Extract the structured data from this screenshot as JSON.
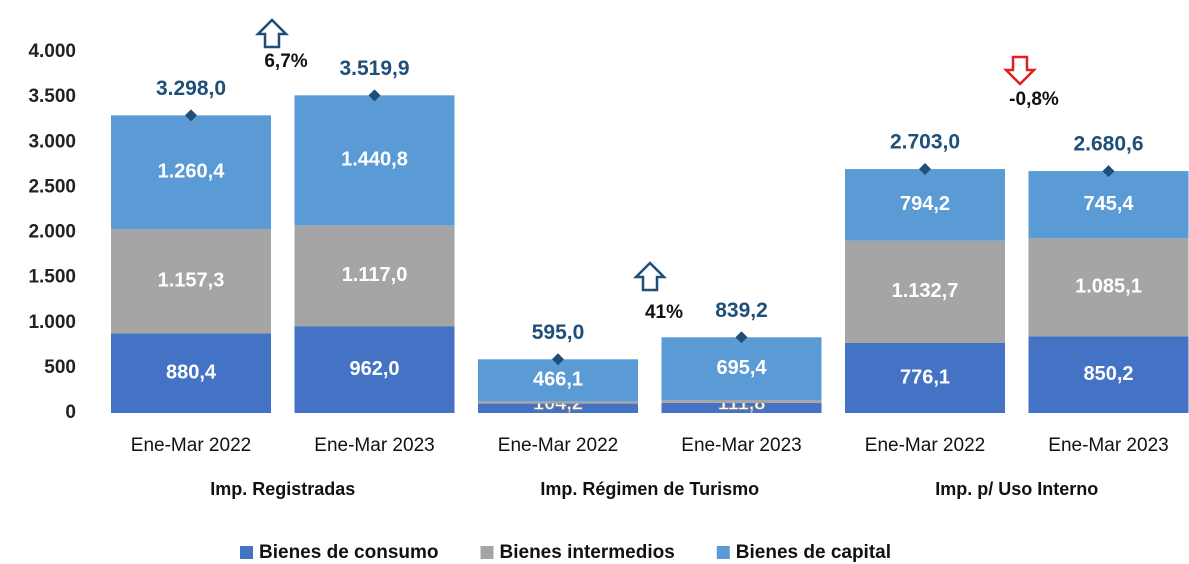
{
  "chart_data": {
    "type": "stacked_bar",
    "categories": [
      "Ene-Mar 2022",
      "Ene-Mar 2023",
      "Ene-Mar 2022",
      "Ene-Mar 2023",
      "Ene-Mar 2022",
      "Ene-Mar 2023"
    ],
    "groups": [
      "Imp. Registradas",
      "Imp. Régimen de Turismo",
      "Imp. p/ Uso Interno"
    ],
    "series": [
      {
        "name": "Bienes de consumo",
        "color": "#4472c4",
        "values": [
          880.4,
          962.0,
          104.2,
          111.8,
          776.1,
          850.2
        ],
        "value_labels": [
          "880,4",
          "962,0",
          "104,2",
          "111,8",
          "776,1",
          "850,2"
        ]
      },
      {
        "name": "Bienes intermedios",
        "color": "#a5a5a5",
        "values": [
          1157.3,
          1117.0,
          24.7,
          32.0,
          1132.7,
          1085.1
        ],
        "value_labels": [
          "1.157,3",
          "1.117,0",
          null,
          null,
          "1.132,7",
          "1.085,1"
        ]
      },
      {
        "name": "Bienes de capital",
        "color": "#5b9bd5",
        "values": [
          1260.4,
          1440.8,
          466.1,
          695.4,
          794.2,
          745.4
        ],
        "value_labels": [
          "1.260,4",
          "1.440,8",
          "466,1",
          "695,4",
          "794,2",
          "745,4"
        ]
      }
    ],
    "totals": {
      "color": "#1f4e79",
      "values": [
        3298.0,
        3519.9,
        595.0,
        839.2,
        2703.0,
        2680.6
      ],
      "value_labels": [
        "3.298,0",
        "3.519,9",
        "595,0",
        "839,2",
        "2.703,0",
        "2.680,6"
      ]
    },
    "annotations": [
      {
        "text": "6,7%",
        "direction": "up"
      },
      {
        "text": "41%",
        "direction": "up"
      },
      {
        "text": "-0,8%",
        "direction": "down"
      }
    ],
    "ylim": [
      0,
      4000
    ],
    "yticks": [
      0,
      500,
      {
        "value": 1000,
        "label": "1.000"
      },
      {
        "value": 1500,
        "label": "1.500"
      },
      {
        "value": 2000,
        "label": "2.000"
      },
      {
        "value": 2500,
        "label": "2.500"
      },
      {
        "value": 3000,
        "label": "3.000"
      },
      {
        "value": 3500,
        "label": "3.500"
      },
      {
        "value": 4000,
        "label": "4.000"
      }
    ],
    "grid": false,
    "legend": "bottom"
  }
}
